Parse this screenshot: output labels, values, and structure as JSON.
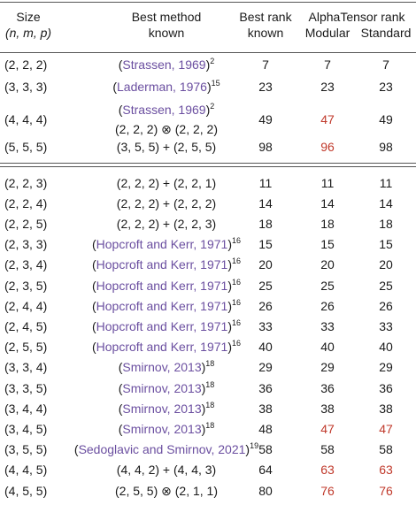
{
  "table": {
    "header": {
      "size": [
        "Size",
        "(n, m, p)"
      ],
      "method": [
        "Best method",
        "known"
      ],
      "best": [
        "Best rank",
        "known"
      ],
      "alphatensor": "AlphaTensor rank",
      "modular": "Modular",
      "standard": "Standard"
    },
    "link_color": "#6b4fa0",
    "highlight_color": "#c0392b",
    "groups": [
      [
        {
          "size": "(2, 2, 2)",
          "cite": "(Strassen, 1969)",
          "ref": "2",
          "best": 7,
          "modular": 7,
          "standard": 7,
          "highlight": []
        },
        {
          "size": "(3, 3, 3)",
          "cite": "(Laderman, 1976)",
          "ref": "15",
          "best": 23,
          "modular": 23,
          "standard": 23,
          "highlight": []
        },
        {
          "size": "(4, 4, 4)",
          "cite": "(Strassen, 1969)",
          "ref": "2",
          "formula": "(2, 2, 2) ⊗ (2, 2, 2)",
          "best": 49,
          "modular": 47,
          "standard": 49,
          "highlight": [
            "modular"
          ]
        },
        {
          "size": "(5, 5, 5)",
          "formula": "(3, 5, 5) + (2, 5, 5)",
          "best": 98,
          "modular": 96,
          "standard": 98,
          "highlight": [
            "modular"
          ]
        }
      ],
      [
        {
          "size": "(2, 2, 3)",
          "formula": "(2, 2, 2) + (2, 2, 1)",
          "best": 11,
          "modular": 11,
          "standard": 11,
          "highlight": []
        },
        {
          "size": "(2, 2, 4)",
          "formula": "(2, 2, 2) + (2, 2, 2)",
          "best": 14,
          "modular": 14,
          "standard": 14,
          "highlight": []
        },
        {
          "size": "(2, 2, 5)",
          "formula": "(2, 2, 2) + (2, 2, 3)",
          "best": 18,
          "modular": 18,
          "standard": 18,
          "highlight": []
        },
        {
          "size": "(2, 3, 3)",
          "cite": "(Hopcroft and Kerr, 1971)",
          "ref": "16",
          "best": 15,
          "modular": 15,
          "standard": 15,
          "highlight": []
        },
        {
          "size": "(2, 3, 4)",
          "cite": "(Hopcroft and Kerr, 1971)",
          "ref": "16",
          "best": 20,
          "modular": 20,
          "standard": 20,
          "highlight": []
        },
        {
          "size": "(2, 3, 5)",
          "cite": "(Hopcroft and Kerr, 1971)",
          "ref": "16",
          "best": 25,
          "modular": 25,
          "standard": 25,
          "highlight": []
        },
        {
          "size": "(2, 4, 4)",
          "cite": "(Hopcroft and Kerr, 1971)",
          "ref": "16",
          "best": 26,
          "modular": 26,
          "standard": 26,
          "highlight": []
        },
        {
          "size": "(2, 4, 5)",
          "cite": "(Hopcroft and Kerr, 1971)",
          "ref": "16",
          "best": 33,
          "modular": 33,
          "standard": 33,
          "highlight": []
        },
        {
          "size": "(2, 5, 5)",
          "cite": "(Hopcroft and Kerr, 1971)",
          "ref": "16",
          "best": 40,
          "modular": 40,
          "standard": 40,
          "highlight": []
        },
        {
          "size": "(3, 3, 4)",
          "cite": "(Smirnov, 2013)",
          "ref": "18",
          "best": 29,
          "modular": 29,
          "standard": 29,
          "highlight": []
        },
        {
          "size": "(3, 3, 5)",
          "cite": "(Smirnov, 2013)",
          "ref": "18",
          "best": 36,
          "modular": 36,
          "standard": 36,
          "highlight": []
        },
        {
          "size": "(3, 4, 4)",
          "cite": "(Smirnov, 2013)",
          "ref": "18",
          "best": 38,
          "modular": 38,
          "standard": 38,
          "highlight": []
        },
        {
          "size": "(3, 4, 5)",
          "cite": "(Smirnov, 2013)",
          "ref": "18",
          "best": 48,
          "modular": 47,
          "standard": 47,
          "highlight": [
            "modular",
            "standard"
          ]
        },
        {
          "size": "(3, 5, 5)",
          "cite": "(Sedoglavic and Smirnov, 2021)",
          "ref": "19",
          "best": 58,
          "modular": 58,
          "standard": 58,
          "highlight": []
        },
        {
          "size": "(4, 4, 5)",
          "formula": "(4, 4, 2) + (4, 4, 3)",
          "best": 64,
          "modular": 63,
          "standard": 63,
          "highlight": [
            "modular",
            "standard"
          ]
        },
        {
          "size": "(4, 5, 5)",
          "formula": "(2, 5, 5) ⊗ (2, 1, 1)",
          "best": 80,
          "modular": 76,
          "standard": 76,
          "highlight": [
            "modular",
            "standard"
          ]
        }
      ]
    ]
  }
}
